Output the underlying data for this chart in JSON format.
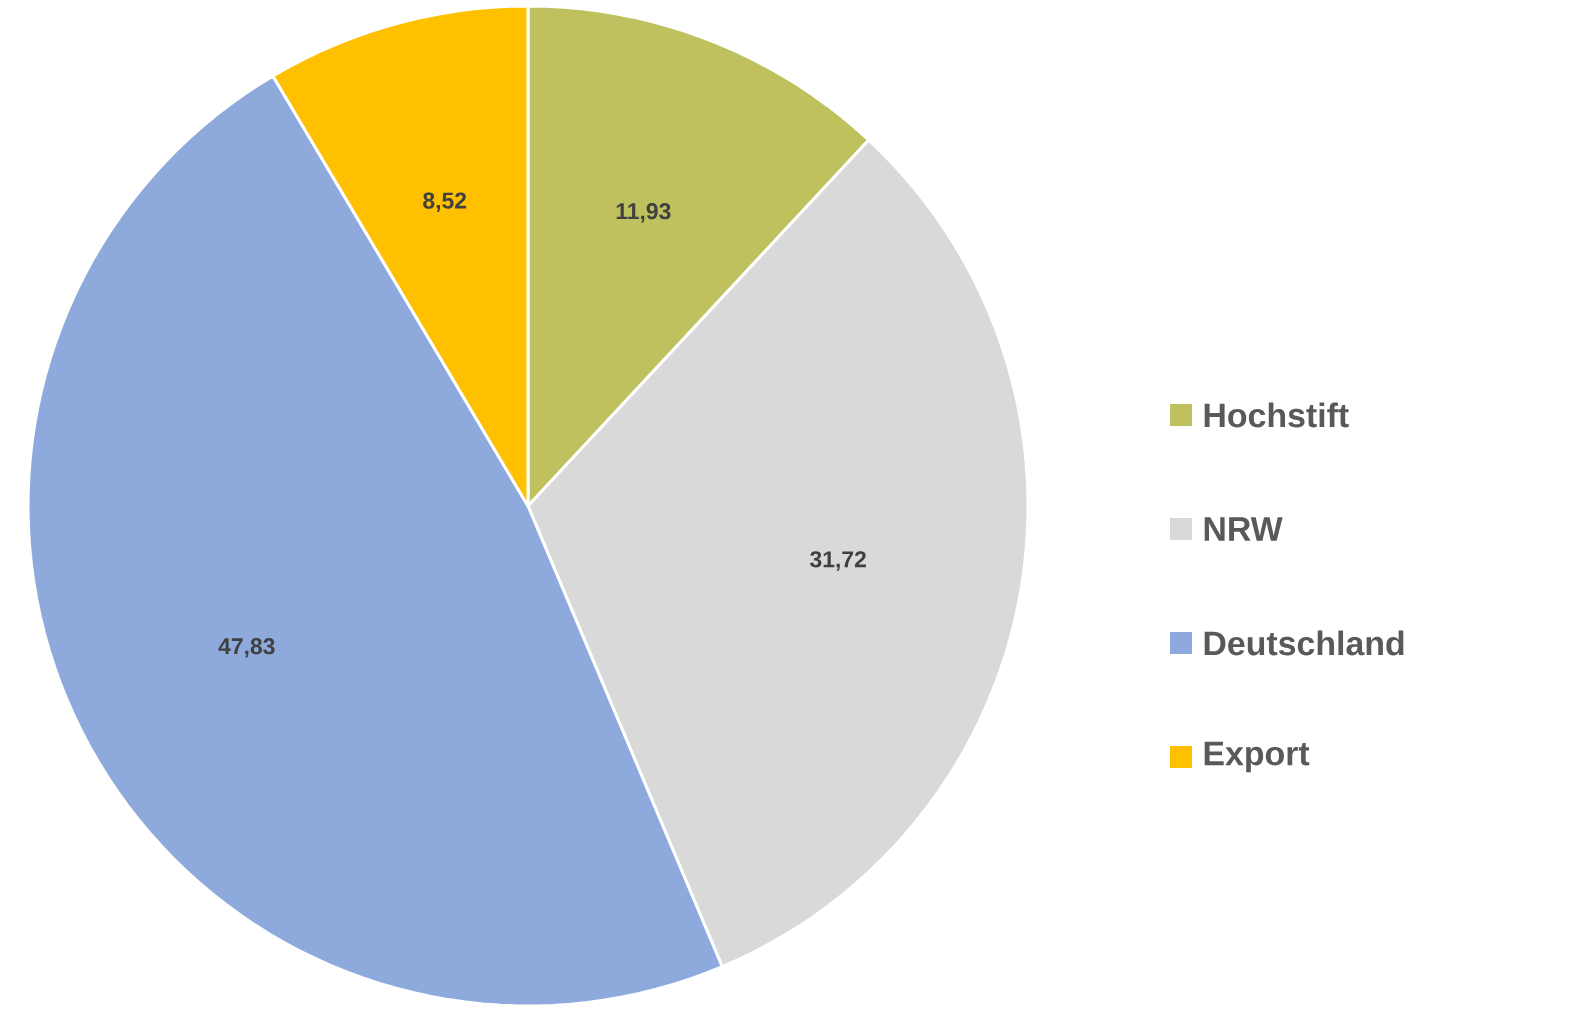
{
  "chart_data": {
    "type": "pie",
    "categories": [
      "Hochstift",
      "NRW",
      "Deutschland",
      "Export"
    ],
    "values": [
      11.93,
      31.72,
      47.83,
      8.52
    ],
    "value_labels": [
      "11,93",
      "31,72",
      "47,83",
      "8,52"
    ],
    "colors": [
      "#bfc05e",
      "#d9d9d9",
      "#8eaadc",
      "#ffc000"
    ],
    "legend": "right"
  }
}
